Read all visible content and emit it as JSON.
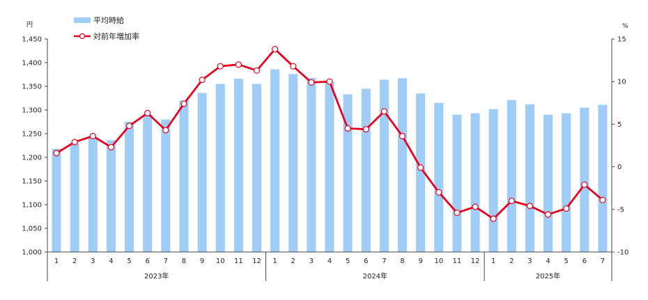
{
  "chart_data": {
    "type": "bar+line",
    "left_unit": "円",
    "right_unit": "%",
    "legend": {
      "bar": "平均時給",
      "line": "対前年増加率",
      "placement": "top-left"
    },
    "y_left": {
      "min": 1000,
      "max": 1450,
      "step": 50
    },
    "y_right": {
      "min": -10,
      "max": 15,
      "step": 5
    },
    "categories": [
      "1",
      "2",
      "3",
      "4",
      "5",
      "6",
      "7",
      "8",
      "9",
      "10",
      "11",
      "12",
      "1",
      "2",
      "3",
      "4",
      "5",
      "6",
      "7",
      "8",
      "9",
      "10",
      "11",
      "12",
      "1",
      "2",
      "3",
      "4",
      "5",
      "6",
      "7"
    ],
    "years": [
      {
        "label": "2023年",
        "start": 0,
        "count": 12
      },
      {
        "label": "2024年",
        "start": 12,
        "count": 12
      },
      {
        "label": "2025年",
        "start": 24,
        "count": 7
      }
    ],
    "series": [
      {
        "name": "平均時給",
        "kind": "bar",
        "color": "#9fcdf5",
        "values": [
          1218,
          1230,
          1243,
          1236,
          1275,
          1290,
          1280,
          1320,
          1336,
          1355,
          1366,
          1355,
          1386,
          1376,
          1368,
          1360,
          1333,
          1345,
          1364,
          1367,
          1335,
          1315,
          1290,
          1293,
          1302,
          1321,
          1312,
          1290,
          1293,
          1305,
          1311
        ]
      },
      {
        "name": "対前年増加率",
        "kind": "line",
        "color": "#e8001c",
        "values": [
          1.6,
          2.9,
          3.6,
          2.3,
          4.8,
          6.3,
          4.3,
          7.4,
          10.2,
          11.8,
          12.0,
          11.3,
          13.8,
          11.8,
          9.9,
          10.0,
          4.5,
          4.4,
          6.5,
          3.6,
          -0.1,
          -3.0,
          -5.4,
          -4.7,
          -6.1,
          -4.0,
          -4.6,
          -5.6,
          -4.9,
          -2.1,
          -3.9
        ]
      }
    ]
  }
}
